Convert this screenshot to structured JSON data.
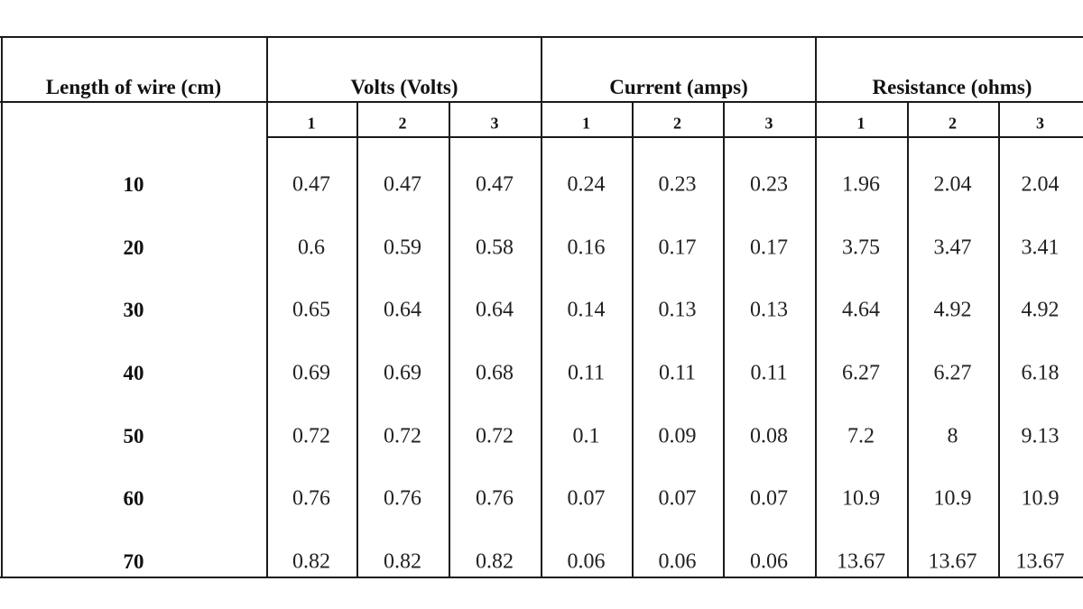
{
  "table": {
    "headers": [
      "Length of wire (cm)",
      "Volts (Volts)",
      "Current (amps)",
      "Resistance (ohms)"
    ],
    "subheaders": [
      "1",
      "2",
      "3",
      "1",
      "2",
      "3",
      "1",
      "2",
      "3"
    ],
    "rows": [
      {
        "length": "10",
        "values": [
          "0.47",
          "0.47",
          "0.47",
          "0.24",
          "0.23",
          "0.23",
          "1.96",
          "2.04",
          "2.04"
        ]
      },
      {
        "length": "20",
        "values": [
          "0.6",
          "0.59",
          "0.58",
          "0.16",
          "0.17",
          "0.17",
          "3.75",
          "3.47",
          "3.41"
        ]
      },
      {
        "length": "30",
        "values": [
          "0.65",
          "0.64",
          "0.64",
          "0.14",
          "0.13",
          "0.13",
          "4.64",
          "4.92",
          "4.92"
        ]
      },
      {
        "length": "40",
        "values": [
          "0.69",
          "0.69",
          "0.68",
          "0.11",
          "0.11",
          "0.11",
          "6.27",
          "6.27",
          "6.18"
        ]
      },
      {
        "length": "50",
        "values": [
          "0.72",
          "0.72",
          "0.72",
          "0.1",
          "0.09",
          "0.08",
          "7.2",
          "8",
          "9.13"
        ]
      },
      {
        "length": "60",
        "values": [
          "0.76",
          "0.76",
          "0.76",
          "0.07",
          "0.07",
          "0.07",
          "10.9",
          "10.9",
          "10.9"
        ]
      },
      {
        "length": "70",
        "values": [
          "0.82",
          "0.82",
          "0.82",
          "0.06",
          "0.06",
          "0.06",
          "13.67",
          "13.67",
          "13.67"
        ]
      }
    ]
  }
}
